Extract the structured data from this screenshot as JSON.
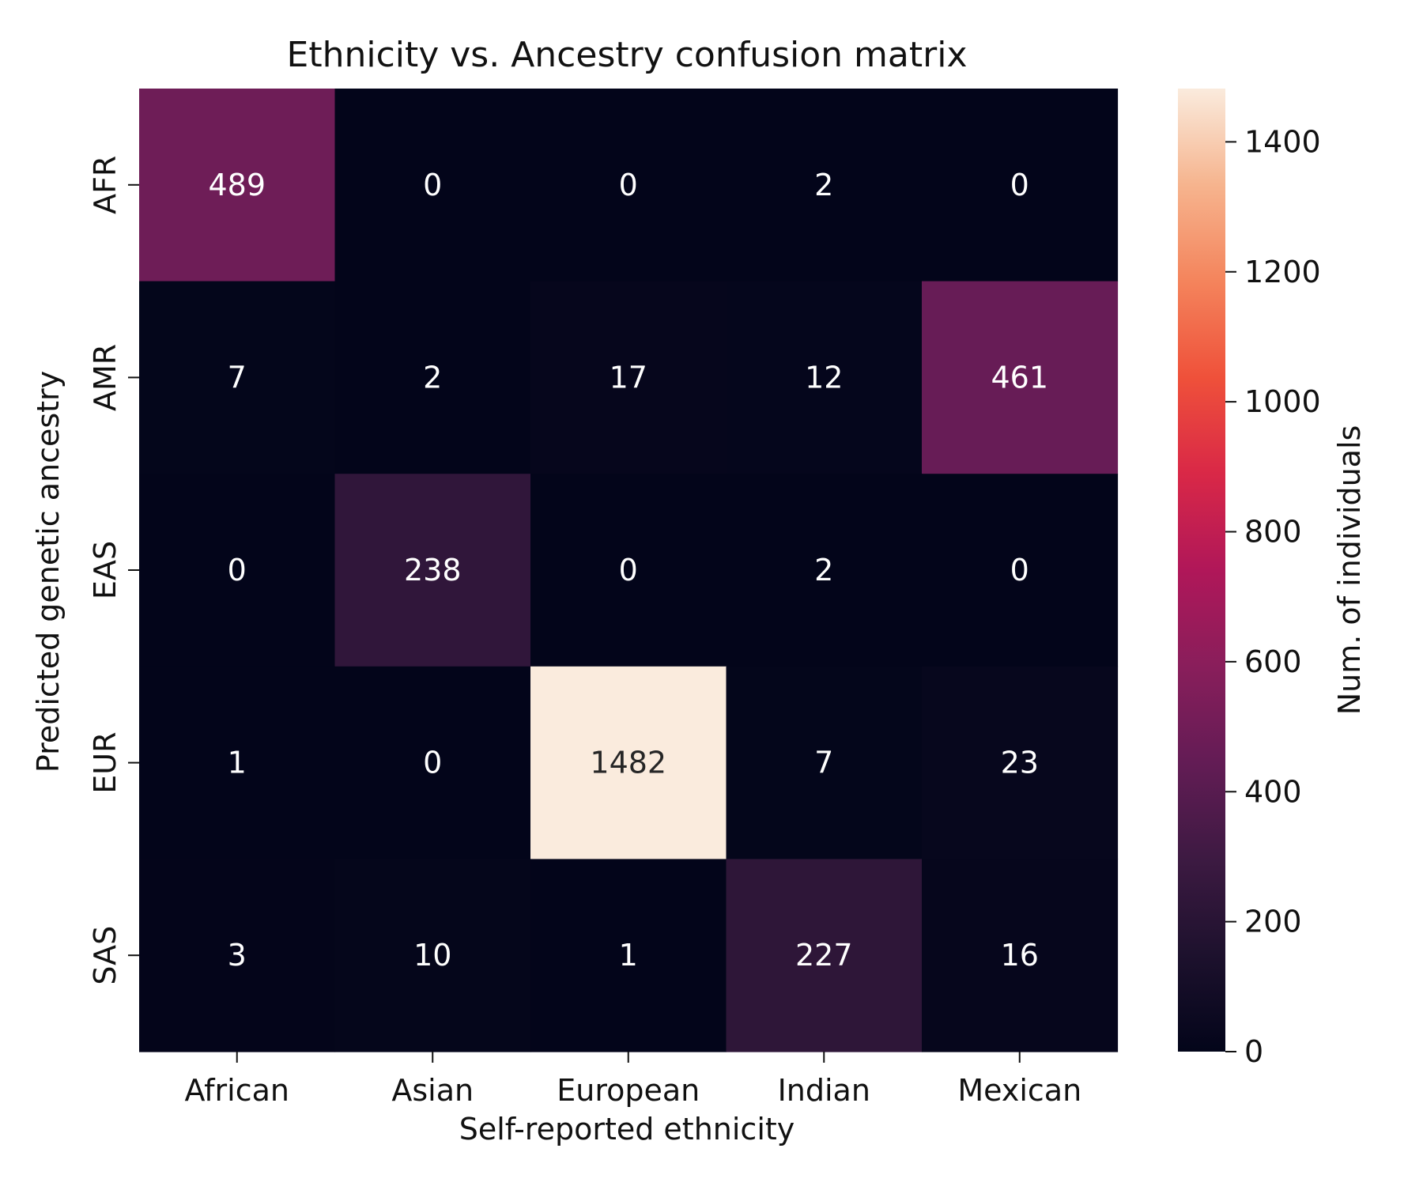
{
  "chart_data": {
    "type": "heatmap",
    "title": "Ethnicity vs. Ancestry confusion matrix",
    "xlabel": "Self-reported ethnicity",
    "ylabel": "Predicted genetic ancestry",
    "x_categories": [
      "African",
      "Asian",
      "European",
      "Indian",
      "Mexican"
    ],
    "y_categories": [
      "AFR",
      "AMR",
      "EAS",
      "EUR",
      "SAS"
    ],
    "values": [
      [
        489,
        0,
        0,
        2,
        0
      ],
      [
        7,
        2,
        17,
        12,
        461
      ],
      [
        0,
        238,
        0,
        2,
        0
      ],
      [
        1,
        0,
        1482,
        7,
        23
      ],
      [
        3,
        10,
        1,
        227,
        16
      ]
    ],
    "colorbar": {
      "label": "Num. of individuals",
      "range": [
        0,
        1482
      ],
      "ticks": [
        0,
        200,
        400,
        600,
        800,
        1000,
        1200,
        1400
      ],
      "colormap": "rocket"
    },
    "grid": false
  }
}
